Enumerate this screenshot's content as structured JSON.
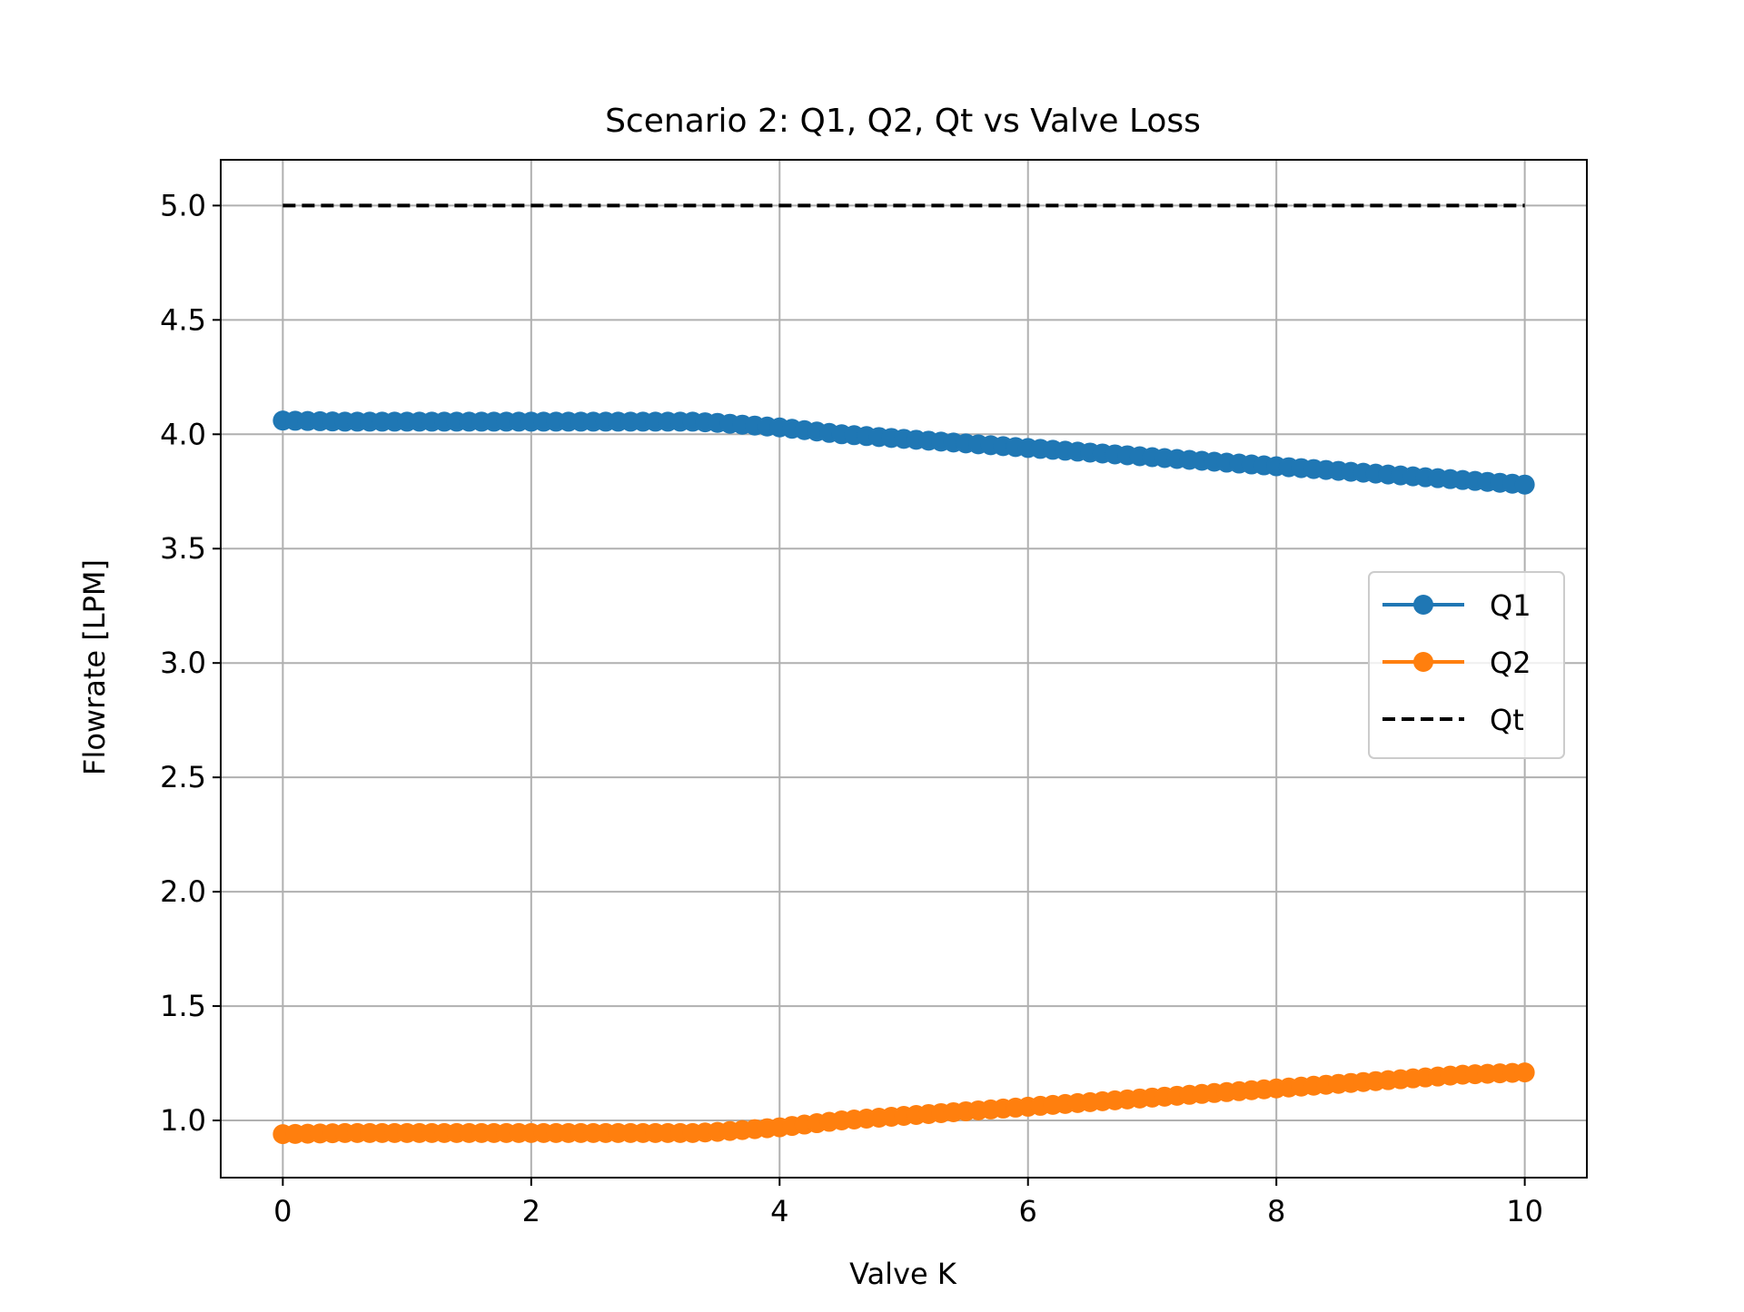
{
  "chart_data": {
    "type": "line",
    "title": "Scenario 2: Q1, Q2, Qt vs Valve Loss",
    "xlabel": "Valve K",
    "ylabel": "Flowrate [LPM]",
    "xlim": [
      -0.5,
      10.5
    ],
    "ylim": [
      0.75,
      5.2
    ],
    "xticks": [
      0,
      2,
      4,
      6,
      8,
      10
    ],
    "xtick_labels": [
      "0",
      "2",
      "4",
      "6",
      "8",
      "10"
    ],
    "yticks": [
      1.0,
      1.5,
      2.0,
      2.5,
      3.0,
      3.5,
      4.0,
      4.5,
      5.0
    ],
    "ytick_labels": [
      "1.0",
      "1.5",
      "2.0",
      "2.5",
      "3.0",
      "3.5",
      "4.0",
      "4.5",
      "5.0"
    ],
    "grid": true,
    "legend_position": "center-right",
    "series": [
      {
        "name": "Q1",
        "color": "#1f77b4",
        "style": "line-marker",
        "x": [
          0,
          0.5,
          1,
          1.5,
          2,
          2.5,
          3,
          3.3,
          3.5,
          4,
          4.5,
          5,
          5.5,
          6,
          6.5,
          7,
          7.5,
          8,
          8.5,
          9,
          9.5,
          10
        ],
        "y": [
          4.06,
          4.055,
          4.055,
          4.055,
          4.055,
          4.055,
          4.055,
          4.055,
          4.05,
          4.03,
          4.0,
          3.98,
          3.96,
          3.94,
          3.92,
          3.9,
          3.88,
          3.86,
          3.84,
          3.82,
          3.8,
          3.78
        ]
      },
      {
        "name": "Q2",
        "color": "#ff7f0e",
        "style": "line-marker",
        "x": [
          0,
          0.5,
          1,
          1.5,
          2,
          2.5,
          3,
          3.3,
          3.5,
          4,
          4.5,
          5,
          5.5,
          6,
          6.5,
          7,
          7.5,
          8,
          8.5,
          9,
          9.5,
          10
        ],
        "y": [
          0.94,
          0.945,
          0.945,
          0.945,
          0.945,
          0.945,
          0.945,
          0.945,
          0.95,
          0.97,
          1.0,
          1.02,
          1.04,
          1.06,
          1.08,
          1.1,
          1.12,
          1.14,
          1.16,
          1.18,
          1.2,
          1.21
        ]
      },
      {
        "name": "Qt",
        "color": "#000000",
        "style": "dashed",
        "x": [
          0,
          10
        ],
        "y": [
          5.0,
          5.0
        ]
      }
    ]
  }
}
